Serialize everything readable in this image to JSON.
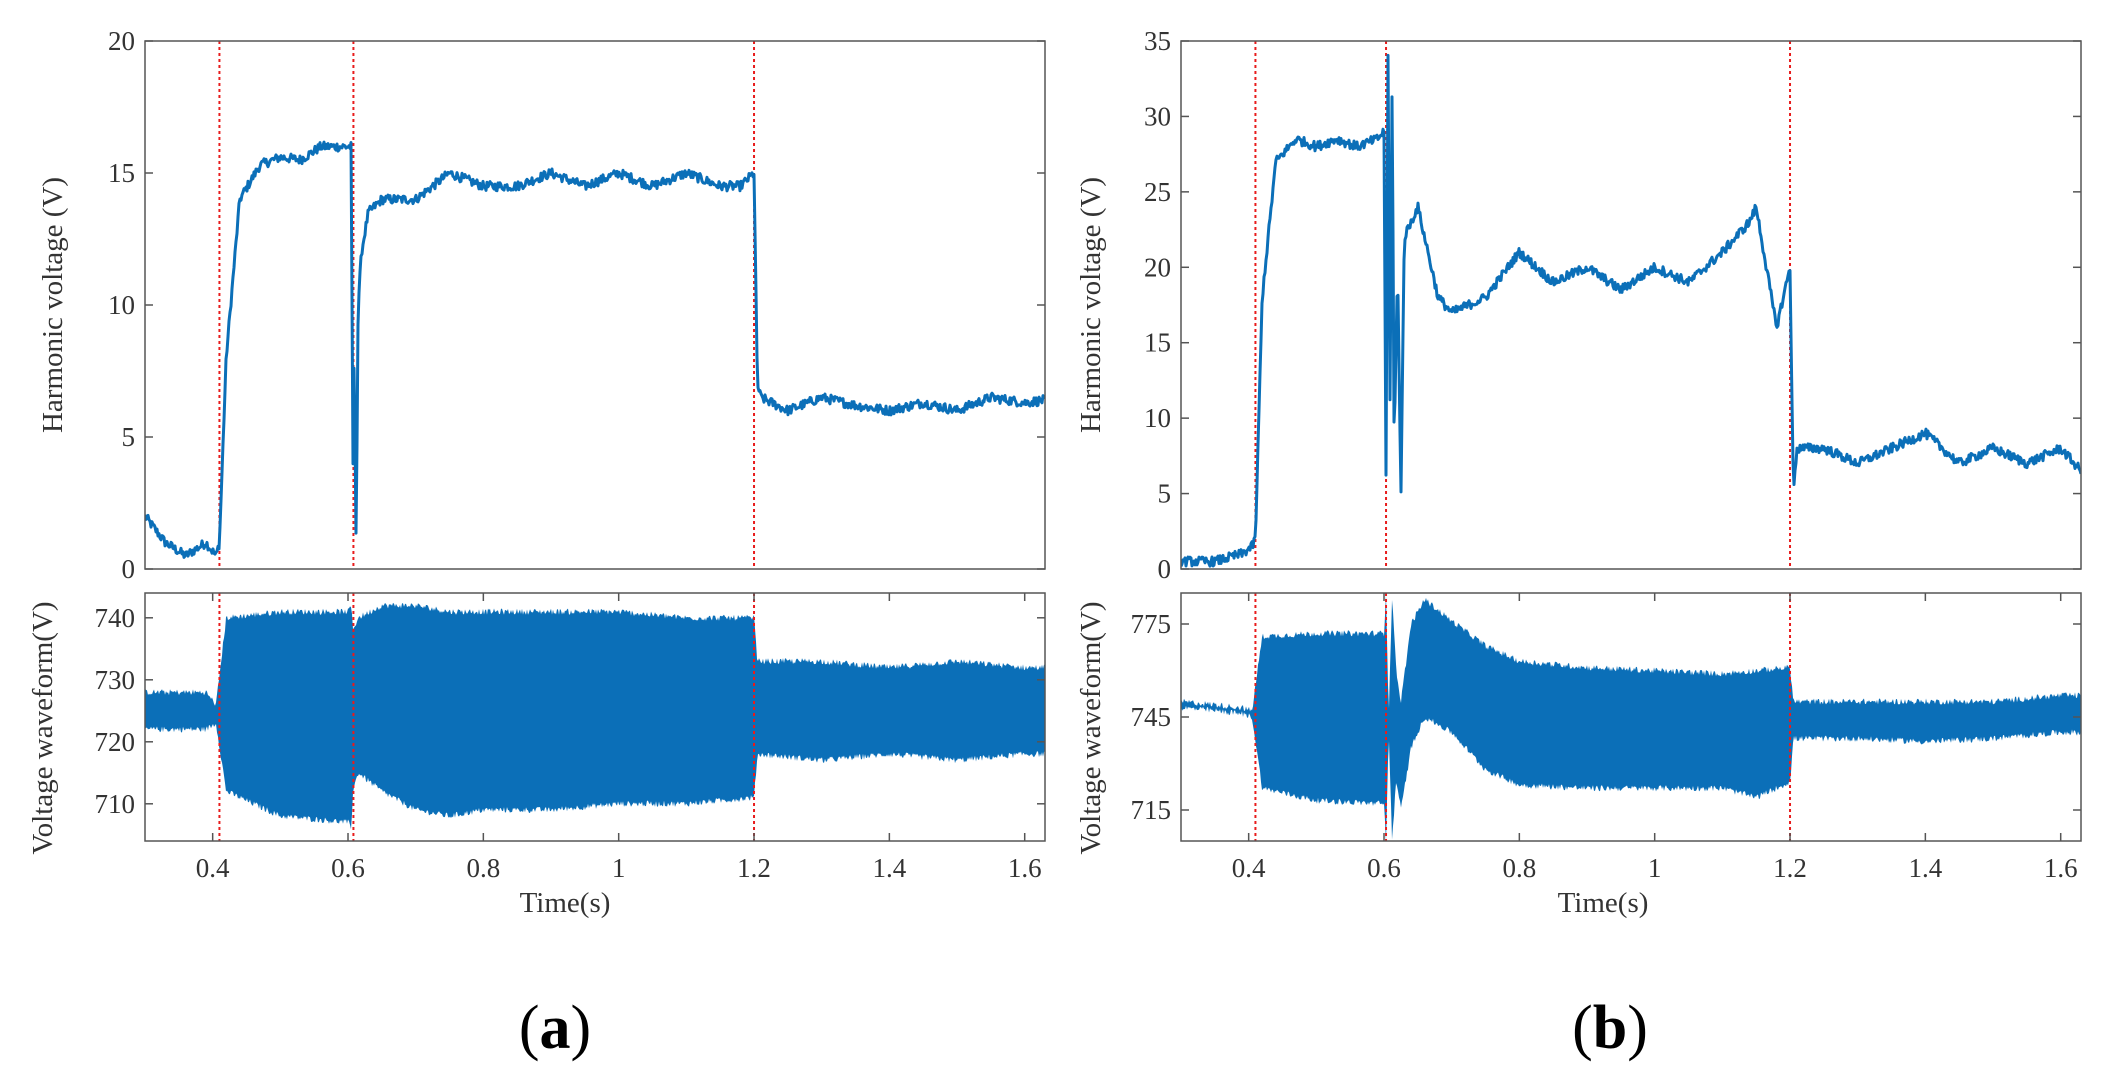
{
  "chart_data": [
    {
      "panel": "(a)",
      "panel_letter": "a",
      "type": "line",
      "subplots": [
        {
          "role": "harmonic",
          "ylabel": "Harmonic voltage (V)",
          "ylim": [
            0,
            20
          ],
          "yticks": [
            "0",
            "5",
            "10",
            "15",
            "20"
          ],
          "series": [
            {
              "name": "Harmonic voltage",
              "x": [
                0.3,
                0.33,
                0.36,
                0.39,
                0.405,
                0.41,
                0.42,
                0.44,
                0.47,
                0.5,
                0.53,
                0.56,
                0.59,
                0.6,
                0.605,
                0.607,
                0.609,
                0.612,
                0.615,
                0.62,
                0.63,
                0.65,
                0.7,
                0.75,
                0.8,
                0.85,
                0.9,
                0.95,
                1.0,
                1.05,
                1.1,
                1.15,
                1.18,
                1.2,
                1.205,
                1.21,
                1.25,
                1.3,
                1.35,
                1.4,
                1.45,
                1.5,
                1.55,
                1.6,
                1.63
              ],
              "values": [
                2.0,
                1.0,
                0.5,
                1.0,
                0.5,
                1.0,
                8.0,
                14.0,
                15.3,
                15.6,
                15.5,
                16.0,
                16.0,
                16.0,
                16.0,
                3.0,
                8.0,
                1.0,
                10.0,
                12.0,
                13.5,
                14.0,
                14.0,
                15.0,
                14.5,
                14.5,
                15.0,
                14.5,
                15.0,
                14.5,
                15.0,
                14.5,
                14.5,
                15.0,
                7.0,
                6.5,
                6.0,
                6.5,
                6.2,
                6.0,
                6.3,
                6.0,
                6.5,
                6.3,
                6.4
              ]
            }
          ]
        },
        {
          "role": "waveform",
          "ylabel": "Voltage waveform(V)",
          "ylim": [
            704,
            744
          ],
          "yticks": [
            "710",
            "720",
            "730",
            "740"
          ],
          "series": [
            {
              "name": "Voltage waveform",
              "x": [
                0.3,
                0.39,
                0.405,
                0.42,
                0.5,
                0.6,
                0.605,
                0.607,
                0.615,
                0.65,
                0.7,
                0.75,
                0.8,
                0.9,
                1.0,
                1.1,
                1.2,
                1.205,
                1.3,
                1.4,
                1.5,
                1.6,
                1.63
              ],
              "upper": [
                728,
                728,
                726,
                740,
                741,
                741,
                742,
                738,
                740,
                742,
                742,
                741,
                741,
                741,
                741,
                740,
                740,
                733,
                733,
                732,
                733,
                732,
                732
              ],
              "lower": [
                722,
                722,
                723,
                712,
                708,
                707,
                706,
                712,
                715,
                712,
                709,
                708,
                709,
                709,
                710,
                710,
                711,
                718,
                717,
                718,
                717,
                718,
                718
              ]
            }
          ]
        }
      ],
      "xlabel": "Time(s)",
      "xlim": [
        0.3,
        1.63
      ],
      "xticks": [
        "0.4",
        "0.6",
        "0.8",
        "1",
        "1.2",
        "1.4",
        "1.6"
      ],
      "event_lines": [
        0.41,
        0.608,
        1.2
      ]
    },
    {
      "panel": "(b)",
      "panel_letter": "b",
      "type": "line",
      "subplots": [
        {
          "role": "harmonic",
          "ylabel": "Harmonic voltage (V)",
          "ylim": [
            0,
            35
          ],
          "yticks": [
            "0",
            "5",
            "10",
            "15",
            "20",
            "25",
            "30",
            "35"
          ],
          "series": [
            {
              "name": "Harmonic voltage",
              "x": [
                0.3,
                0.35,
                0.39,
                0.405,
                0.41,
                0.42,
                0.44,
                0.47,
                0.5,
                0.53,
                0.56,
                0.59,
                0.6,
                0.603,
                0.606,
                0.609,
                0.612,
                0.615,
                0.62,
                0.625,
                0.63,
                0.64,
                0.65,
                0.68,
                0.7,
                0.75,
                0.8,
                0.85,
                0.9,
                0.95,
                1.0,
                1.05,
                1.1,
                1.14,
                1.15,
                1.18,
                1.2,
                1.205,
                1.21,
                1.25,
                1.3,
                1.35,
                1.4,
                1.45,
                1.5,
                1.55,
                1.6,
                1.63
              ],
              "values": [
                0.5,
                0.5,
                1.0,
                1.5,
                2.0,
                18.0,
                27.0,
                28.5,
                28.0,
                28.5,
                28.0,
                28.5,
                29.0,
                6.0,
                35.0,
                10.0,
                33.0,
                8.0,
                20.0,
                5.0,
                22.0,
                23.0,
                24.0,
                18.0,
                17.0,
                18.0,
                21.0,
                19.0,
                20.0,
                18.5,
                20.0,
                19.0,
                21.0,
                23.0,
                24.0,
                16.0,
                20.0,
                5.0,
                8.0,
                8.0,
                7.0,
                8.0,
                9.0,
                7.0,
                8.0,
                7.0,
                8.0,
                6.5
              ]
            }
          ]
        },
        {
          "role": "waveform",
          "ylabel": "Voltage waveform(V)",
          "ylim": [
            705,
            785
          ],
          "yticks": [
            "715",
            "745",
            "775"
          ],
          "series": [
            {
              "name": "Voltage waveform",
              "x": [
                0.3,
                0.35,
                0.39,
                0.405,
                0.42,
                0.5,
                0.6,
                0.603,
                0.607,
                0.612,
                0.618,
                0.625,
                0.64,
                0.66,
                0.7,
                0.75,
                0.8,
                0.9,
                1.0,
                1.1,
                1.15,
                1.2,
                1.205,
                1.3,
                1.4,
                1.5,
                1.6,
                1.63
              ],
              "upper": [
                750,
                749,
                748,
                747,
                771,
                772,
                772,
                785,
                745,
                785,
                760,
                750,
                775,
                783,
                776,
                768,
                763,
                761,
                760,
                759,
                760,
                761,
                750,
                750,
                750,
                750,
                752,
                752
              ],
              "lower": [
                748,
                747,
                746,
                745,
                722,
                718,
                717,
                705,
                740,
                705,
                725,
                715,
                735,
                745,
                740,
                728,
                723,
                722,
                722,
                722,
                719,
                724,
                738,
                738,
                737,
                738,
                740,
                740
              ]
            }
          ]
        }
      ],
      "xlabel": "Time(s)",
      "xlim": [
        0.3,
        1.63
      ],
      "xticks": [
        "0.4",
        "0.6",
        "0.8",
        "1",
        "1.2",
        "1.4",
        "1.6"
      ],
      "event_lines": [
        0.41,
        0.603,
        1.2
      ]
    }
  ],
  "colors": {
    "series": "#0b6fb8",
    "band": "#0b6fb8",
    "event_line": "#e81c1c",
    "axes": "#555555"
  }
}
